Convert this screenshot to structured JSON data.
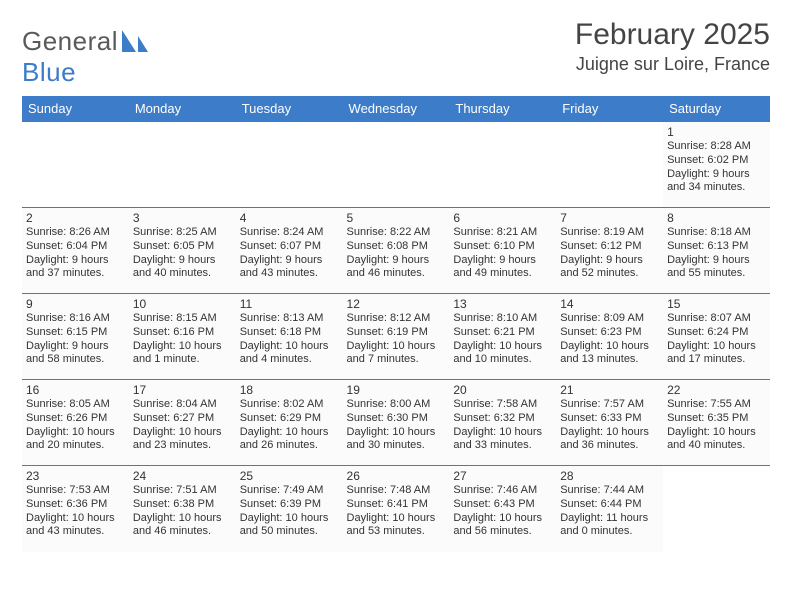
{
  "brand": {
    "part1": "General",
    "part2": "Blue",
    "text_color": "#5a5a5a",
    "blue_color": "#3d7cc9"
  },
  "header": {
    "title": "February 2025",
    "location": "Juigne sur Loire, France"
  },
  "style": {
    "header_bg": "#3d7cc9",
    "header_text": "#ffffff",
    "cell_border": "#3d7cc9",
    "cell_bg": "#fbfbfb",
    "body_text": "#333333",
    "daynum_fontsize": 12,
    "info_fontsize": 11,
    "title_fontsize": 30,
    "location_fontsize": 18
  },
  "weekdays": [
    "Sunday",
    "Monday",
    "Tuesday",
    "Wednesday",
    "Thursday",
    "Friday",
    "Saturday"
  ],
  "weeks": [
    [
      null,
      null,
      null,
      null,
      null,
      null,
      {
        "d": "1",
        "sr": "Sunrise: 8:28 AM",
        "ss": "Sunset: 6:02 PM",
        "dl": "Daylight: 9 hours and 34 minutes."
      }
    ],
    [
      {
        "d": "2",
        "sr": "Sunrise: 8:26 AM",
        "ss": "Sunset: 6:04 PM",
        "dl": "Daylight: 9 hours and 37 minutes."
      },
      {
        "d": "3",
        "sr": "Sunrise: 8:25 AM",
        "ss": "Sunset: 6:05 PM",
        "dl": "Daylight: 9 hours and 40 minutes."
      },
      {
        "d": "4",
        "sr": "Sunrise: 8:24 AM",
        "ss": "Sunset: 6:07 PM",
        "dl": "Daylight: 9 hours and 43 minutes."
      },
      {
        "d": "5",
        "sr": "Sunrise: 8:22 AM",
        "ss": "Sunset: 6:08 PM",
        "dl": "Daylight: 9 hours and 46 minutes."
      },
      {
        "d": "6",
        "sr": "Sunrise: 8:21 AM",
        "ss": "Sunset: 6:10 PM",
        "dl": "Daylight: 9 hours and 49 minutes."
      },
      {
        "d": "7",
        "sr": "Sunrise: 8:19 AM",
        "ss": "Sunset: 6:12 PM",
        "dl": "Daylight: 9 hours and 52 minutes."
      },
      {
        "d": "8",
        "sr": "Sunrise: 8:18 AM",
        "ss": "Sunset: 6:13 PM",
        "dl": "Daylight: 9 hours and 55 minutes."
      }
    ],
    [
      {
        "d": "9",
        "sr": "Sunrise: 8:16 AM",
        "ss": "Sunset: 6:15 PM",
        "dl": "Daylight: 9 hours and 58 minutes."
      },
      {
        "d": "10",
        "sr": "Sunrise: 8:15 AM",
        "ss": "Sunset: 6:16 PM",
        "dl": "Daylight: 10 hours and 1 minute."
      },
      {
        "d": "11",
        "sr": "Sunrise: 8:13 AM",
        "ss": "Sunset: 6:18 PM",
        "dl": "Daylight: 10 hours and 4 minutes."
      },
      {
        "d": "12",
        "sr": "Sunrise: 8:12 AM",
        "ss": "Sunset: 6:19 PM",
        "dl": "Daylight: 10 hours and 7 minutes."
      },
      {
        "d": "13",
        "sr": "Sunrise: 8:10 AM",
        "ss": "Sunset: 6:21 PM",
        "dl": "Daylight: 10 hours and 10 minutes."
      },
      {
        "d": "14",
        "sr": "Sunrise: 8:09 AM",
        "ss": "Sunset: 6:23 PM",
        "dl": "Daylight: 10 hours and 13 minutes."
      },
      {
        "d": "15",
        "sr": "Sunrise: 8:07 AM",
        "ss": "Sunset: 6:24 PM",
        "dl": "Daylight: 10 hours and 17 minutes."
      }
    ],
    [
      {
        "d": "16",
        "sr": "Sunrise: 8:05 AM",
        "ss": "Sunset: 6:26 PM",
        "dl": "Daylight: 10 hours and 20 minutes."
      },
      {
        "d": "17",
        "sr": "Sunrise: 8:04 AM",
        "ss": "Sunset: 6:27 PM",
        "dl": "Daylight: 10 hours and 23 minutes."
      },
      {
        "d": "18",
        "sr": "Sunrise: 8:02 AM",
        "ss": "Sunset: 6:29 PM",
        "dl": "Daylight: 10 hours and 26 minutes."
      },
      {
        "d": "19",
        "sr": "Sunrise: 8:00 AM",
        "ss": "Sunset: 6:30 PM",
        "dl": "Daylight: 10 hours and 30 minutes."
      },
      {
        "d": "20",
        "sr": "Sunrise: 7:58 AM",
        "ss": "Sunset: 6:32 PM",
        "dl": "Daylight: 10 hours and 33 minutes."
      },
      {
        "d": "21",
        "sr": "Sunrise: 7:57 AM",
        "ss": "Sunset: 6:33 PM",
        "dl": "Daylight: 10 hours and 36 minutes."
      },
      {
        "d": "22",
        "sr": "Sunrise: 7:55 AM",
        "ss": "Sunset: 6:35 PM",
        "dl": "Daylight: 10 hours and 40 minutes."
      }
    ],
    [
      {
        "d": "23",
        "sr": "Sunrise: 7:53 AM",
        "ss": "Sunset: 6:36 PM",
        "dl": "Daylight: 10 hours and 43 minutes."
      },
      {
        "d": "24",
        "sr": "Sunrise: 7:51 AM",
        "ss": "Sunset: 6:38 PM",
        "dl": "Daylight: 10 hours and 46 minutes."
      },
      {
        "d": "25",
        "sr": "Sunrise: 7:49 AM",
        "ss": "Sunset: 6:39 PM",
        "dl": "Daylight: 10 hours and 50 minutes."
      },
      {
        "d": "26",
        "sr": "Sunrise: 7:48 AM",
        "ss": "Sunset: 6:41 PM",
        "dl": "Daylight: 10 hours and 53 minutes."
      },
      {
        "d": "27",
        "sr": "Sunrise: 7:46 AM",
        "ss": "Sunset: 6:43 PM",
        "dl": "Daylight: 10 hours and 56 minutes."
      },
      {
        "d": "28",
        "sr": "Sunrise: 7:44 AM",
        "ss": "Sunset: 6:44 PM",
        "dl": "Daylight: 11 hours and 0 minutes."
      },
      null
    ]
  ]
}
